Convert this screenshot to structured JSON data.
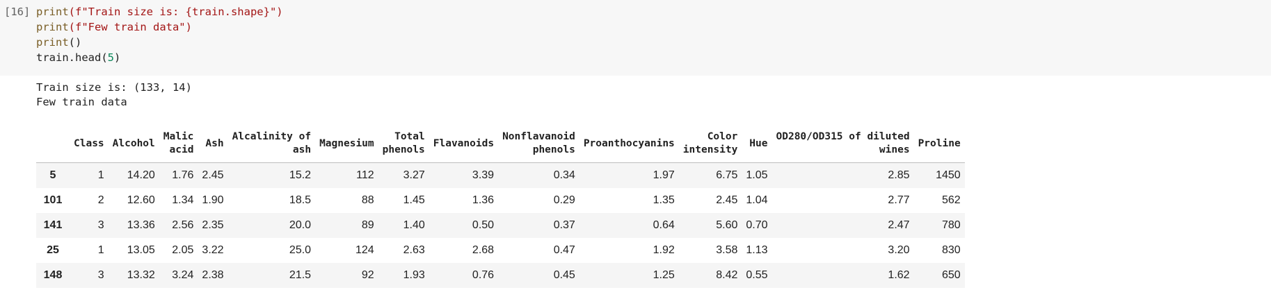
{
  "cell": {
    "execution_count": "[16]",
    "code": {
      "line1_fn": "print",
      "line1_arg": "(f\"Train size is: {train.shape}\")",
      "line2_fn": "print",
      "line2_arg": "(f\"Few train data\")",
      "line3_fn": "print",
      "line3_arg": "()",
      "line4_pre": "train.head(",
      "line4_num": "5",
      "line4_post": ")"
    }
  },
  "output": {
    "line1": "Train size is: (133, 14)",
    "line2": "Few train data"
  },
  "table": {
    "columns": [
      "",
      "Class",
      "Alcohol",
      "Malic\nacid",
      "Ash",
      "Alcalinity of\nash",
      "Magnesium",
      "Total\nphenols",
      "Flavanoids",
      "Nonflavanoid\nphenols",
      "Proanthocyanins",
      "Color\nintensity",
      "Hue",
      "OD280/OD315 of diluted\nwines",
      "Proline"
    ],
    "rows": [
      [
        "5",
        "1",
        "14.20",
        "1.76",
        "2.45",
        "15.2",
        "112",
        "3.27",
        "3.39",
        "0.34",
        "1.97",
        "6.75",
        "1.05",
        "2.85",
        "1450"
      ],
      [
        "101",
        "2",
        "12.60",
        "1.34",
        "1.90",
        "18.5",
        "88",
        "1.45",
        "1.36",
        "0.29",
        "1.35",
        "2.45",
        "1.04",
        "2.77",
        "562"
      ],
      [
        "141",
        "3",
        "13.36",
        "2.56",
        "2.35",
        "20.0",
        "89",
        "1.40",
        "0.50",
        "0.37",
        "0.64",
        "5.60",
        "0.70",
        "2.47",
        "780"
      ],
      [
        "25",
        "1",
        "13.05",
        "2.05",
        "3.22",
        "25.0",
        "124",
        "2.63",
        "2.68",
        "0.47",
        "1.92",
        "3.58",
        "1.13",
        "3.20",
        "830"
      ],
      [
        "148",
        "3",
        "13.32",
        "3.24",
        "2.38",
        "21.5",
        "92",
        "1.93",
        "0.76",
        "0.45",
        "1.25",
        "8.42",
        "0.55",
        "1.62",
        "650"
      ]
    ]
  }
}
